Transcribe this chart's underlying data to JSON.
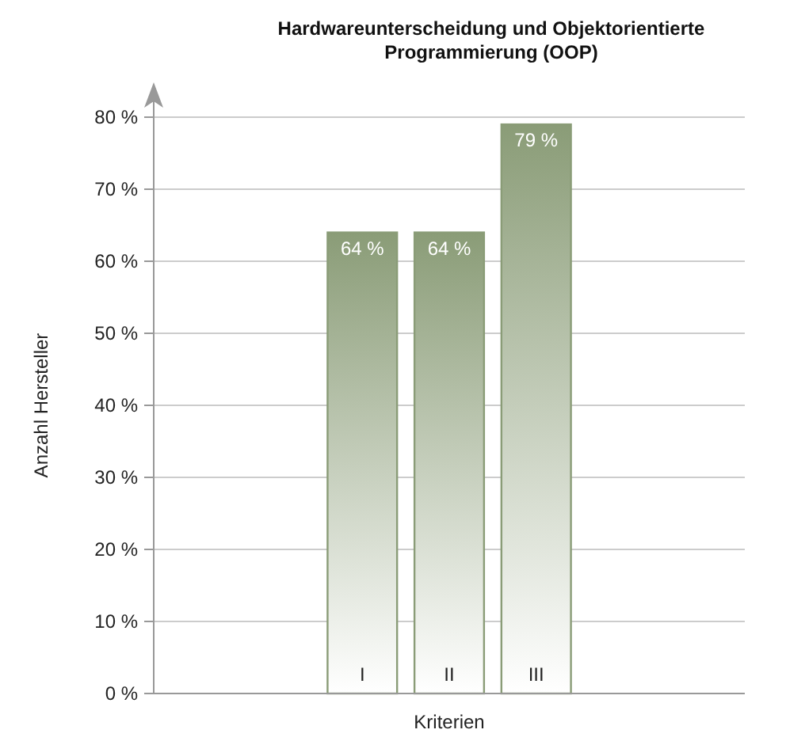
{
  "chart_data": {
    "type": "bar",
    "title": "Hardwareunterscheidung und Objektorientierte Programmierung (OOP)",
    "xlabel": "Kriterien",
    "ylabel": "Anzahl Hersteller",
    "categories": [
      null,
      null,
      "I",
      "II",
      "III",
      null,
      null
    ],
    "values": [
      null,
      null,
      64,
      64,
      79,
      null,
      null
    ],
    "value_labels": [
      null,
      null,
      "64 %",
      "64 %",
      "79 %",
      null,
      null
    ],
    "color": "#8a9c77",
    "ylim": [
      0,
      80
    ],
    "yticks": [
      {
        "value": 0,
        "label": "0 %"
      },
      {
        "value": 10,
        "label": "10 %"
      },
      {
        "value": 20,
        "label": "20 %"
      },
      {
        "value": 30,
        "label": "30 %"
      },
      {
        "value": 40,
        "label": "40 %"
      },
      {
        "value": 50,
        "label": "50 %"
      },
      {
        "value": 60,
        "label": "60 %"
      },
      {
        "value": 70,
        "label": "70 %"
      },
      {
        "value": 80,
        "label": "80 %"
      }
    ],
    "grid": "y"
  }
}
